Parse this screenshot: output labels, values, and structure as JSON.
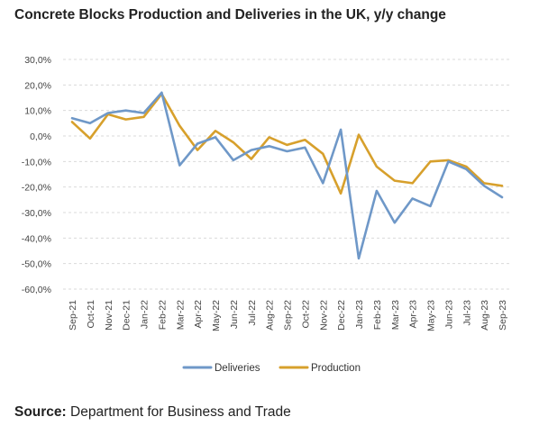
{
  "title": "Concrete Blocks Production and Deliveries in the UK, y/y change",
  "source": {
    "label": "Source:",
    "text": " Department for Business and Trade"
  },
  "colors": {
    "deliveries": "#6f98c8",
    "production": "#d7a02c",
    "grid": "#d9d9d9"
  },
  "chart_data": {
    "type": "line",
    "title": "Concrete Blocks Production and Deliveries in the UK, y/y change",
    "xlabel": "",
    "ylabel": "",
    "ylim": [
      -60,
      30
    ],
    "yticks": [
      "30,0%",
      "20,0%",
      "10,0%",
      "0,0%",
      "-10,0%",
      "-20,0%",
      "-30,0%",
      "-40,0%",
      "-50,0%",
      "-60,0%"
    ],
    "grid": true,
    "legend_position": "bottom",
    "categories": [
      "Sep-21",
      "Oct-21",
      "Nov-21",
      "Dec-21",
      "Jan-22",
      "Feb-22",
      "Mar-22",
      "Apr-22",
      "May-22",
      "Jun-22",
      "Jul-22",
      "Aug-22",
      "Sep-22",
      "Oct-22",
      "Nov-22",
      "Dec-22",
      "Jan-23",
      "Feb-23",
      "Mar-23",
      "Apr-23",
      "May-23",
      "Jun-23",
      "Jul-23",
      "Aug-23",
      "Sep-23"
    ],
    "series": [
      {
        "name": "Deliveries",
        "values": [
          7,
          5,
          9,
          10,
          9,
          17,
          -11.5,
          -3,
          -0.5,
          -9.5,
          -5.5,
          -4,
          -6,
          -4.5,
          -18.5,
          2.5,
          -48,
          -21.5,
          -34,
          -24.5,
          -27.5,
          -10,
          -13,
          -19.5,
          -24
        ]
      },
      {
        "name": "Production",
        "values": [
          5.5,
          -1,
          8.5,
          6.5,
          7.5,
          16.5,
          4,
          -5.5,
          2,
          -2.5,
          -9,
          -0.5,
          -3.5,
          -1.5,
          -7,
          -22.5,
          0.5,
          -12,
          -17.5,
          -18.5,
          -10,
          -9.5,
          -12,
          -18.5,
          -19.5
        ]
      }
    ]
  }
}
